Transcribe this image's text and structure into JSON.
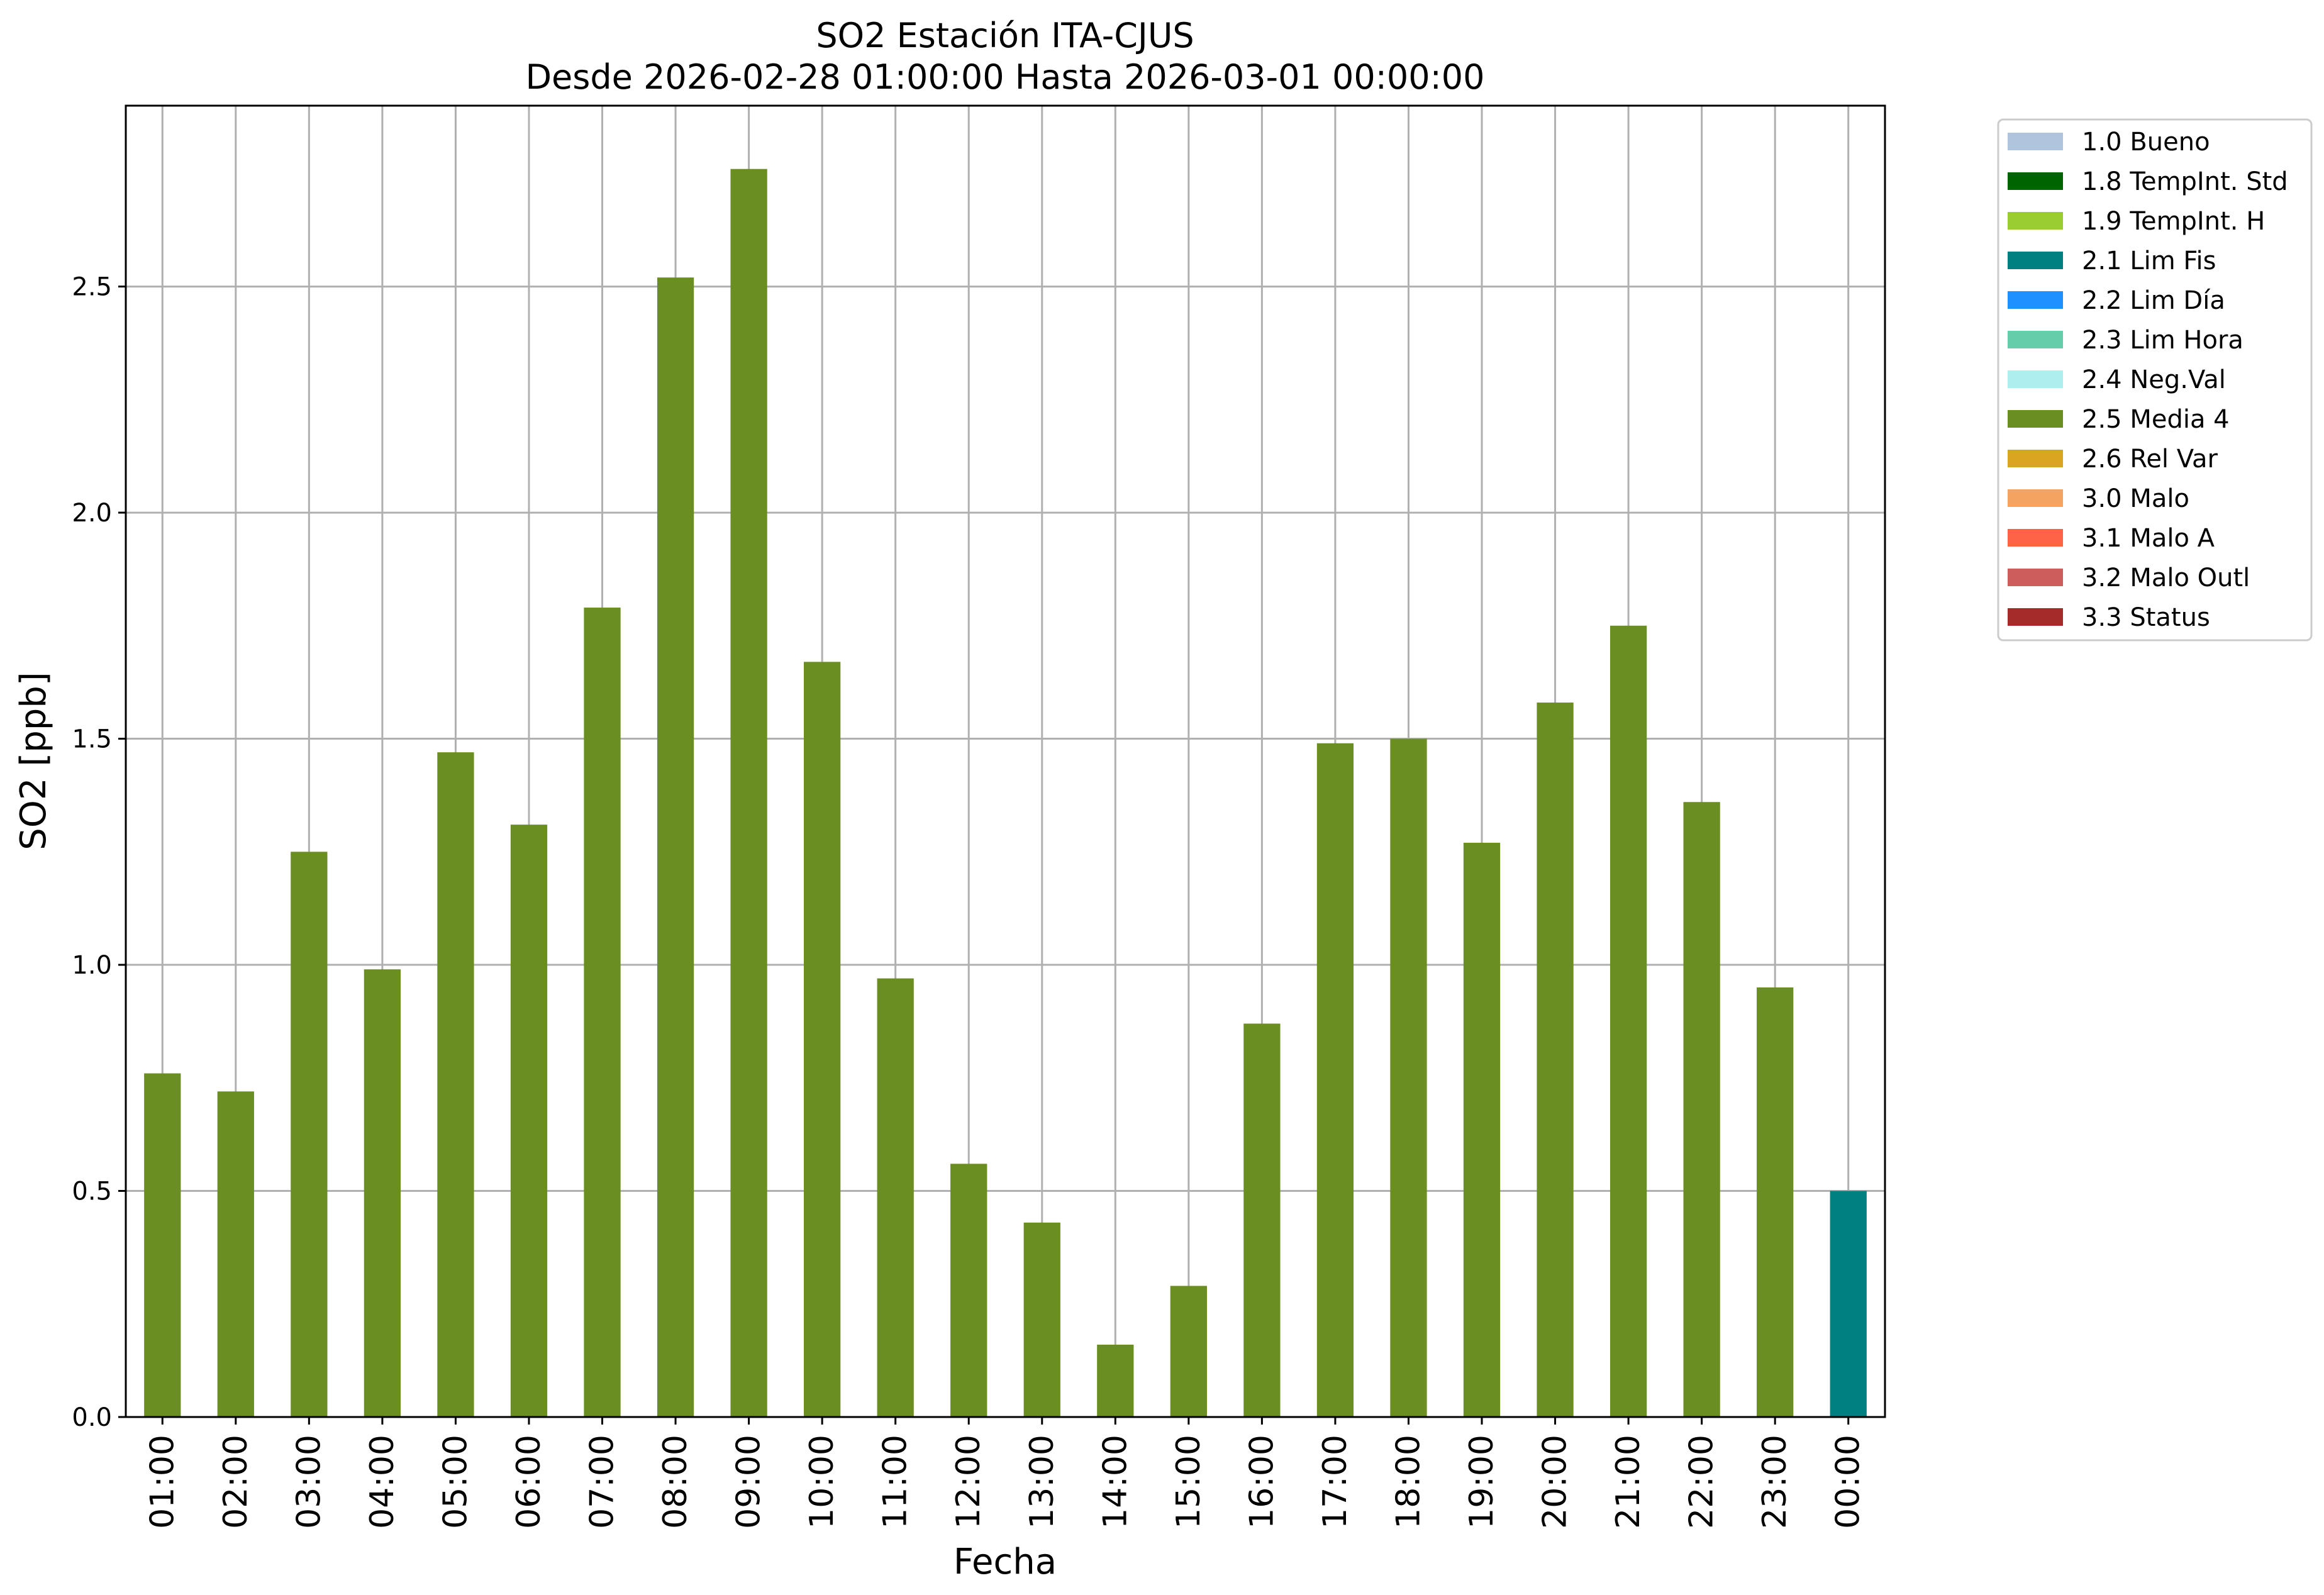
{
  "chart_data": {
    "type": "bar",
    "title": "SO2 Estación ITA-CJUS",
    "subtitle": "Desde 2026-02-28 01:00:00 Hasta 2026-03-01 00:00:00",
    "xlabel": "Fecha",
    "ylabel": "SO2 [ppb]",
    "ylim": [
      0,
      2.9
    ],
    "yticks": [
      "0.0",
      "0.5",
      "1.0",
      "1.5",
      "2.0",
      "2.5"
    ],
    "grid": true,
    "legend_position": "outside-top-right",
    "categories": [
      "01:00",
      "02:00",
      "03:00",
      "04:00",
      "05:00",
      "06:00",
      "07:00",
      "08:00",
      "09:00",
      "10:00",
      "11:00",
      "12:00",
      "13:00",
      "14:00",
      "15:00",
      "16:00",
      "17:00",
      "18:00",
      "19:00",
      "20:00",
      "21:00",
      "22:00",
      "23:00",
      "00:00"
    ],
    "values": [
      0.76,
      0.72,
      1.25,
      0.99,
      1.47,
      1.31,
      1.79,
      2.52,
      2.76,
      1.67,
      0.97,
      0.56,
      0.43,
      0.16,
      0.29,
      0.87,
      1.49,
      1.5,
      1.27,
      1.58,
      1.75,
      1.36,
      0.95,
      0.5
    ],
    "bar_flags": [
      "2.5 Media 4",
      "2.5 Media 4",
      "2.5 Media 4",
      "2.5 Media 4",
      "2.5 Media 4",
      "2.5 Media 4",
      "2.5 Media 4",
      "2.5 Media 4",
      "2.5 Media 4",
      "2.5 Media 4",
      "2.5 Media 4",
      "2.5 Media 4",
      "2.5 Media 4",
      "2.5 Media 4",
      "2.5 Media 4",
      "2.5 Media 4",
      "2.5 Media 4",
      "2.5 Media 4",
      "2.5 Media 4",
      "2.5 Media 4",
      "2.5 Media 4",
      "2.5 Media 4",
      "2.5 Media 4",
      "2.1 Lim Fis"
    ],
    "legend": [
      {
        "label": "1.0 Bueno",
        "color": "#b0c4de"
      },
      {
        "label": "1.8 TempInt. Std",
        "color": "#006400"
      },
      {
        "label": "1.9 TempInt. H",
        "color": "#9acd32"
      },
      {
        "label": "2.1 Lim Fis",
        "color": "#008080"
      },
      {
        "label": "2.2 Lim Día",
        "color": "#1e90ff"
      },
      {
        "label": "2.3 Lim Hora",
        "color": "#66cdaa"
      },
      {
        "label": "2.4 Neg.Val",
        "color": "#afeeee"
      },
      {
        "label": "2.5 Media 4",
        "color": "#6b8e23"
      },
      {
        "label": "2.6 Rel Var",
        "color": "#daa520"
      },
      {
        "label": "3.0 Malo",
        "color": "#f4a460"
      },
      {
        "label": "3.1 Malo A",
        "color": "#ff6347"
      },
      {
        "label": "3.2 Malo Outl",
        "color": "#cd5c5c"
      },
      {
        "label": "3.3 Status",
        "color": "#a52a2a"
      }
    ]
  }
}
